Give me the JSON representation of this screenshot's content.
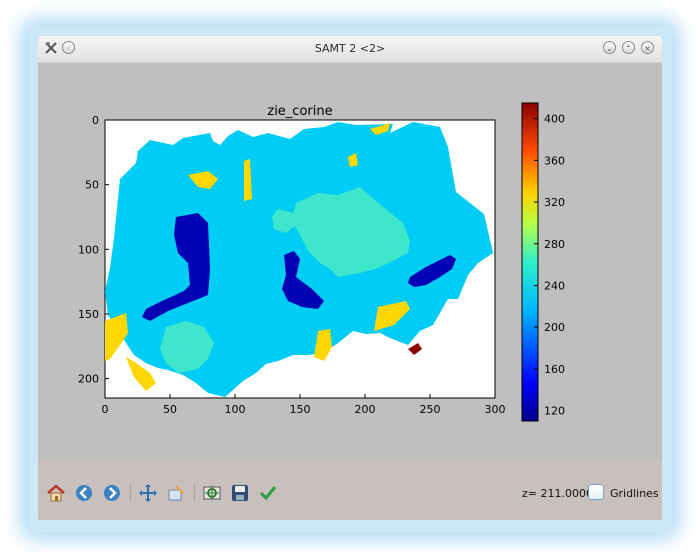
{
  "window": {
    "title": "SAMT 2 <2>"
  },
  "plot": {
    "title": "zie_corine",
    "x_ticks": [
      "0",
      "50",
      "100",
      "150",
      "200",
      "250",
      "300"
    ],
    "y_ticks": [
      "0",
      "50",
      "100",
      "150",
      "200"
    ],
    "colorbar_ticks": [
      "120",
      "160",
      "200",
      "240",
      "280",
      "320",
      "360",
      "400"
    ],
    "colormap": "jet",
    "colors": {
      "low": "#00008b",
      "cyan": "#00ccf5",
      "aqua": "#3ee6cc",
      "yellow": "#ffd700",
      "red": "#8b0000"
    }
  },
  "chart_data": {
    "type": "heatmap",
    "title": "zie_corine",
    "xlim": [
      0,
      300
    ],
    "ylim": [
      215,
      0
    ],
    "x_ticks": [
      0,
      50,
      100,
      150,
      200,
      250,
      300
    ],
    "y_ticks": [
      0,
      50,
      100,
      150,
      200
    ],
    "colorbar": {
      "min": 110,
      "max": 415,
      "ticks": [
        120,
        160,
        200,
        240,
        280,
        320,
        360,
        400
      ]
    }
  },
  "toolbar": {
    "icons": [
      "home-icon",
      "back-icon",
      "forward-icon",
      "pan-icon",
      "zoom-icon",
      "configure-icon",
      "save-icon",
      "check-icon"
    ],
    "z_value": "z= 211.0000",
    "gridlines_label": "Gridlines"
  }
}
